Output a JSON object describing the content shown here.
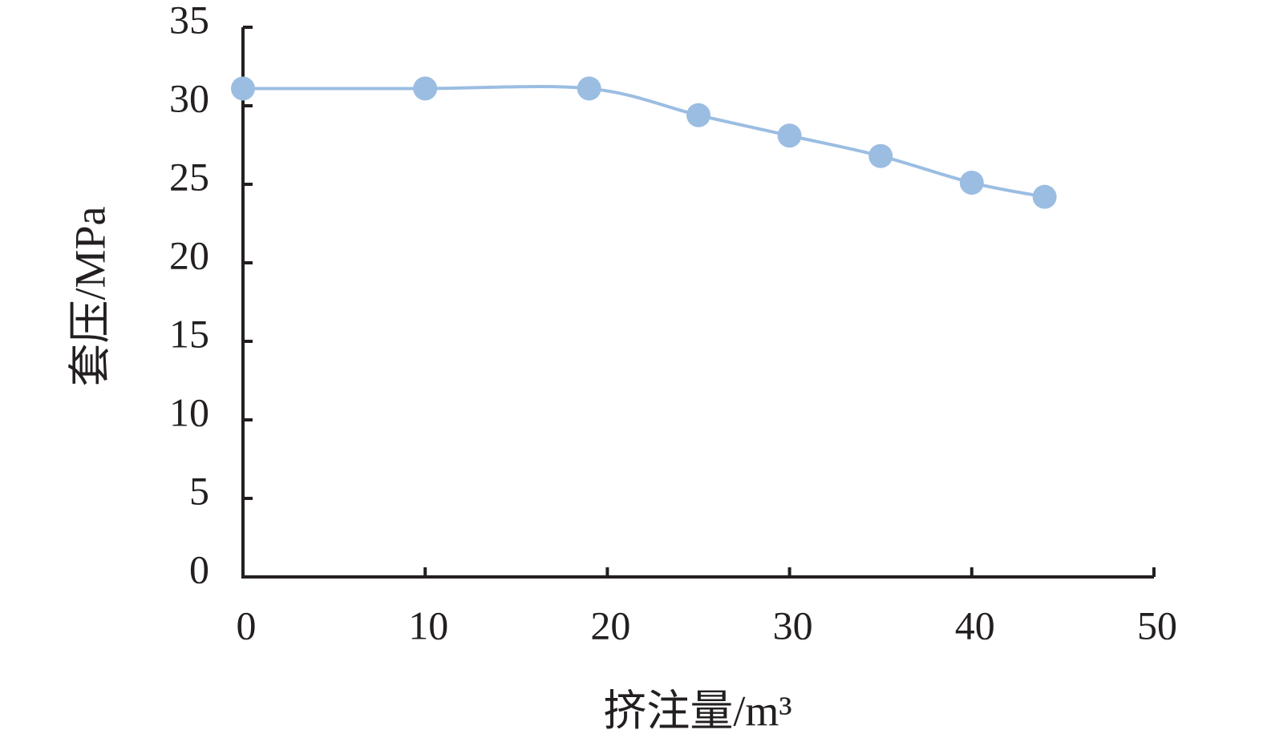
{
  "chart_data": {
    "type": "line",
    "x_label": "挤注量/m³",
    "y_label": "套压/MPa",
    "x": [
      0,
      10,
      19,
      25,
      30,
      35,
      40,
      44
    ],
    "series": [
      {
        "color": "#9bbde2",
        "values": [
          31.1,
          31.1,
          31.1,
          29.4,
          28.1,
          26.8,
          25.1,
          24.2
        ]
      }
    ],
    "xlim": [
      0,
      50
    ],
    "xticks": [
      0,
      10,
      20,
      30,
      40,
      50
    ],
    "ylim": [
      0,
      35
    ],
    "yticks": [
      0,
      5,
      10,
      15,
      20,
      25,
      30,
      35
    ],
    "smooth": true,
    "grid": false
  }
}
